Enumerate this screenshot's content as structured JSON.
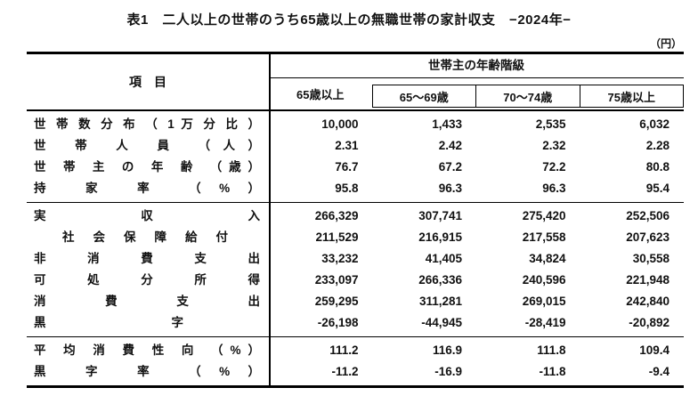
{
  "title": "表1　二人以上の世帯のうち65歳以上の無職世帯の家計収支　−2024年−",
  "unit_note": "（円）",
  "table": {
    "header": {
      "item": "項　目",
      "age_class": "世帯主の年齢階級",
      "age_cols": [
        "65歳以上",
        "65～69歳",
        "70～74歳",
        "75歳以上"
      ]
    },
    "groups": [
      [
        {
          "label": "世 帯 数 分 布 （ 1 万 分 比 ）",
          "values": [
            "10,000",
            "1,433",
            "2,535",
            "6,032"
          ]
        },
        {
          "label": "世 帯 人 員 （人）",
          "values": [
            "2.31",
            "2.42",
            "2.32",
            "2.28"
          ]
        },
        {
          "label": "世 帯 主 の 年 齢 （歳）",
          "values": [
            "76.7",
            "67.2",
            "72.2",
            "80.8"
          ]
        },
        {
          "label": "持 家 率 （%）",
          "values": [
            "95.8",
            "96.3",
            "96.3",
            "95.4"
          ]
        }
      ],
      [
        {
          "label": "実 収 入",
          "values": [
            "266,329",
            "307,741",
            "275,420",
            "252,506"
          ]
        },
        {
          "label": "社 会 保 障 給 付",
          "values": [
            "211,529",
            "216,915",
            "217,558",
            "207,623"
          ]
        },
        {
          "label": "非 消 費 支 出",
          "values": [
            "33,232",
            "41,405",
            "34,824",
            "30,558"
          ]
        },
        {
          "label": "可 処 分 所 得",
          "values": [
            "233,097",
            "266,336",
            "240,596",
            "221,948"
          ]
        },
        {
          "label": "消 費 支 出",
          "values": [
            "259,295",
            "311,281",
            "269,015",
            "242,840"
          ]
        },
        {
          "label": "黒 字",
          "values": [
            "-26,198",
            "-44,945",
            "-28,419",
            "-20,892"
          ]
        }
      ],
      [
        {
          "label": "平 均 消 費 性 向 （%）",
          "values": [
            "111.2",
            "116.9",
            "111.8",
            "109.4"
          ]
        },
        {
          "label": "黒 字 率 （%）",
          "values": [
            "-11.2",
            "-16.9",
            "-11.8",
            "-9.4"
          ]
        }
      ]
    ]
  },
  "chart_data": {
    "type": "table",
    "title": "表1 二人以上の世帯のうち65歳以上の無職世帯の家計収支 −2024年−",
    "unit": "円",
    "columns": [
      "項目",
      "65歳以上",
      "65～69歳",
      "70～74歳",
      "75歳以上"
    ],
    "rows": [
      [
        "世帯数分布（1万分比）",
        10000,
        1433,
        2535,
        6032
      ],
      [
        "世帯人員（人）",
        2.31,
        2.42,
        2.32,
        2.28
      ],
      [
        "世帯主の年齢（歳）",
        76.7,
        67.2,
        72.2,
        80.8
      ],
      [
        "持家率（%）",
        95.8,
        96.3,
        96.3,
        95.4
      ],
      [
        "実収入",
        266329,
        307741,
        275420,
        252506
      ],
      [
        "社会保障給付",
        211529,
        216915,
        217558,
        207623
      ],
      [
        "非消費支出",
        33232,
        41405,
        34824,
        30558
      ],
      [
        "可処分所得",
        233097,
        266336,
        240596,
        221948
      ],
      [
        "消費支出",
        259295,
        311281,
        269015,
        242840
      ],
      [
        "黒字",
        -26198,
        -44945,
        -28419,
        -20892
      ],
      [
        "平均消費性向（%）",
        111.2,
        116.9,
        111.8,
        109.4
      ],
      [
        "黒字率（%）",
        -11.2,
        -16.9,
        -11.8,
        -9.4
      ]
    ]
  }
}
